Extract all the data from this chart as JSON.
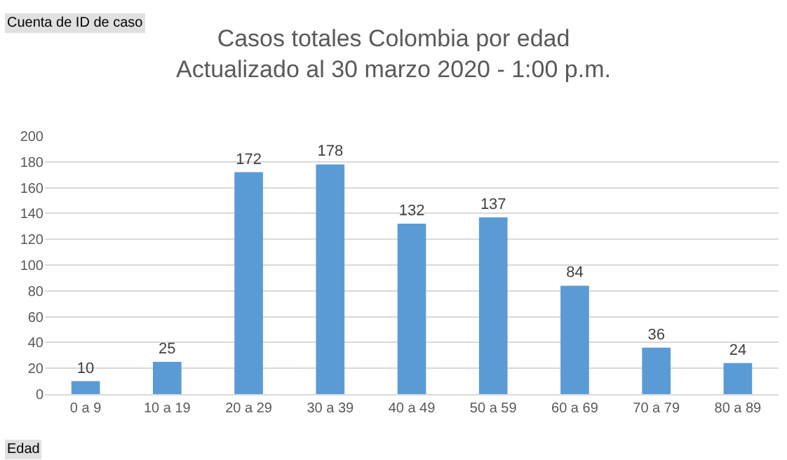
{
  "chart_data": {
    "type": "bar",
    "title": "Casos totales Colombia por edad\nActualizado al 30 marzo 2020 - 1:00 p.m.",
    "annotations": [
      "Cuenta de ID de caso",
      "Edad"
    ],
    "categories": [
      "0 a 9",
      "10 a 19",
      "20 a 29",
      "30 a 39",
      "40 a 49",
      "50 a 59",
      "60 a 69",
      "70 a 79",
      "80 a 89"
    ],
    "values": [
      10,
      25,
      172,
      178,
      132,
      137,
      84,
      36,
      24
    ],
    "color": "#5b9bd5",
    "ylim": [
      0,
      200
    ],
    "yticks": [
      0,
      20,
      40,
      60,
      80,
      100,
      120,
      140,
      160,
      180,
      200
    ],
    "grid": "y",
    "data_labels": true,
    "legend": false
  }
}
